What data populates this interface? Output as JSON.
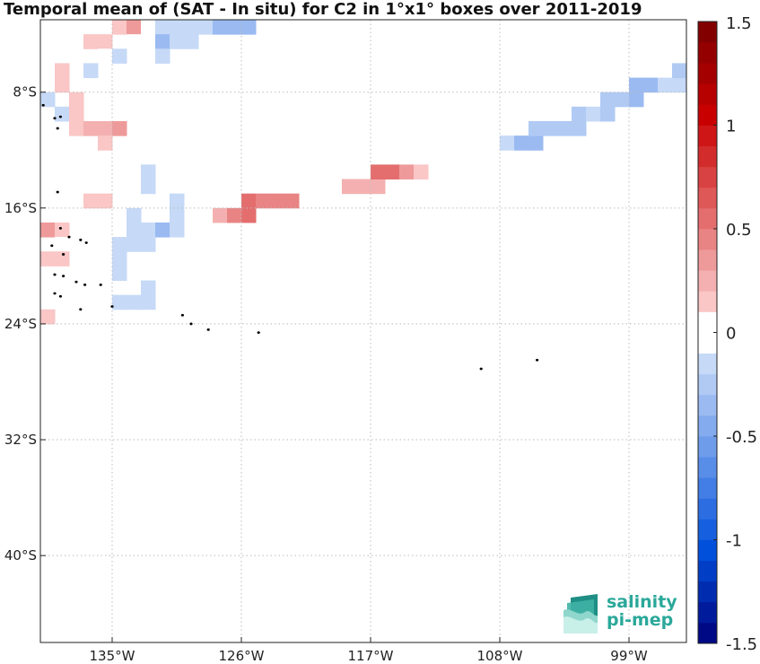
{
  "title": "Temporal mean of (SAT - In situ) for C2 in 1°x1° boxes over 2011-2019",
  "map": {
    "lon_range": [
      -140,
      -95
    ],
    "lat_range": [
      -46,
      -3
    ],
    "x_ticks": [
      {
        "value": -135,
        "label": "135°W"
      },
      {
        "value": -126,
        "label": "126°W"
      },
      {
        "value": -117,
        "label": "117°W"
      },
      {
        "value": -108,
        "label": "108°W"
      },
      {
        "value": -99,
        "label": "99°W"
      }
    ],
    "y_ticks": [
      {
        "value": -8,
        "label": "8°S"
      },
      {
        "value": -16,
        "label": "16°S"
      },
      {
        "value": -24,
        "label": "24°S"
      },
      {
        "value": -32,
        "label": "32°S"
      },
      {
        "value": -40,
        "label": "40°S"
      }
    ],
    "grid": "dotted",
    "cells": [
      {
        "lon": -135,
        "lat": -4,
        "v": 0.15
      },
      {
        "lon": -134,
        "lat": -4,
        "v": 0.3
      },
      {
        "lon": -133,
        "lat": -4,
        "v": -0.05
      },
      {
        "lon": -132,
        "lat": -4,
        "v": -0.15
      },
      {
        "lon": -131,
        "lat": -4,
        "v": -0.15
      },
      {
        "lon": -130,
        "lat": -4,
        "v": -0.1
      },
      {
        "lon": -129,
        "lat": -4,
        "v": -0.2
      },
      {
        "lon": -128,
        "lat": -4,
        "v": -0.35
      },
      {
        "lon": -127,
        "lat": -4,
        "v": -0.35
      },
      {
        "lon": -126,
        "lat": -4,
        "v": -0.3
      },
      {
        "lon": -137,
        "lat": -5,
        "v": 0.15
      },
      {
        "lon": -136,
        "lat": -5,
        "v": 0.15
      },
      {
        "lon": -134,
        "lat": -5,
        "v": 0.05
      },
      {
        "lon": -133,
        "lat": -5,
        "v": -0.05
      },
      {
        "lon": -132,
        "lat": -5,
        "v": -0.3
      },
      {
        "lon": -131,
        "lat": -5,
        "v": -0.2
      },
      {
        "lon": -130,
        "lat": -5,
        "v": -0.2
      },
      {
        "lon": -136,
        "lat": -6,
        "v": -0.05
      },
      {
        "lon": -135,
        "lat": -6,
        "v": -0.1
      },
      {
        "lon": -133,
        "lat": -6,
        "v": -0.05
      },
      {
        "lon": -132,
        "lat": -6,
        "v": -0.15
      },
      {
        "lon": -139,
        "lat": -7,
        "v": 0.15
      },
      {
        "lon": -137,
        "lat": -7,
        "v": -0.1
      },
      {
        "lon": -139,
        "lat": -8,
        "v": 0.15
      },
      {
        "lon": -140,
        "lat": -9,
        "v": -0.1
      },
      {
        "lon": -138,
        "lat": -9,
        "v": 0.1
      },
      {
        "lon": -139,
        "lat": -10,
        "v": -0.15
      },
      {
        "lon": -138,
        "lat": -10,
        "v": 0.1
      },
      {
        "lon": -136,
        "lat": -10,
        "v": 0.05
      },
      {
        "lon": -138,
        "lat": -11,
        "v": 0.1
      },
      {
        "lon": -137,
        "lat": -11,
        "v": 0.2
      },
      {
        "lon": -136,
        "lat": -11,
        "v": 0.25
      },
      {
        "lon": -135,
        "lat": -11,
        "v": 0.35
      },
      {
        "lon": -136,
        "lat": -12,
        "v": 0.15
      },
      {
        "lon": -133,
        "lat": -14,
        "v": -0.1
      },
      {
        "lon": -133,
        "lat": -15,
        "v": -0.1
      },
      {
        "lon": -137,
        "lat": -16,
        "v": 0.15
      },
      {
        "lon": -136,
        "lat": -16,
        "v": 0.15
      },
      {
        "lon": -131,
        "lat": -16,
        "v": -0.1
      },
      {
        "lon": -134,
        "lat": -17,
        "v": -0.2
      },
      {
        "lon": -131,
        "lat": -17,
        "v": -0.1
      },
      {
        "lon": -140,
        "lat": -18,
        "v": 0.3
      },
      {
        "lon": -139,
        "lat": -18,
        "v": 0.1
      },
      {
        "lon": -134,
        "lat": -18,
        "v": -0.1
      },
      {
        "lon": -133,
        "lat": -18,
        "v": -0.1
      },
      {
        "lon": -132,
        "lat": -18,
        "v": -0.3
      },
      {
        "lon": -131,
        "lat": -18,
        "v": -0.1
      },
      {
        "lon": -139,
        "lat": -19,
        "v": 0.05
      },
      {
        "lon": -135,
        "lat": -19,
        "v": -0.1
      },
      {
        "lon": -134,
        "lat": -19,
        "v": -0.1
      },
      {
        "lon": -133,
        "lat": -19,
        "v": -0.1
      },
      {
        "lon": -140,
        "lat": -20,
        "v": 0.15
      },
      {
        "lon": -139,
        "lat": -20,
        "v": 0.15
      },
      {
        "lon": -135,
        "lat": -20,
        "v": -0.1
      },
      {
        "lon": -135,
        "lat": -21,
        "v": -0.1
      },
      {
        "lon": -133,
        "lat": -22,
        "v": -0.15
      },
      {
        "lon": -135,
        "lat": -23,
        "v": -0.1
      },
      {
        "lon": -134,
        "lat": -23,
        "v": -0.1
      },
      {
        "lon": -133,
        "lat": -23,
        "v": -0.1
      },
      {
        "lon": -140,
        "lat": -24,
        "v": 0.15
      },
      {
        "lon": -128,
        "lat": -17,
        "v": 0.2
      },
      {
        "lon": -127,
        "lat": -17,
        "v": 0.45
      },
      {
        "lon": -126,
        "lat": -17,
        "v": 0.55
      },
      {
        "lon": -126,
        "lat": -16,
        "v": 0.55
      },
      {
        "lon": -125,
        "lat": -16,
        "v": 0.45
      },
      {
        "lon": -124,
        "lat": -16,
        "v": 0.45
      },
      {
        "lon": -123,
        "lat": -16,
        "v": 0.45
      },
      {
        "lon": -119,
        "lat": -15,
        "v": 0.25
      },
      {
        "lon": -118,
        "lat": -15,
        "v": 0.25
      },
      {
        "lon": -117,
        "lat": -15,
        "v": 0.25
      },
      {
        "lon": -117,
        "lat": -14,
        "v": 0.5
      },
      {
        "lon": -116,
        "lat": -14,
        "v": 0.5
      },
      {
        "lon": -115,
        "lat": -14,
        "v": 0.35
      },
      {
        "lon": -114,
        "lat": -14,
        "v": 0.15
      },
      {
        "lon": -108,
        "lat": -12,
        "v": -0.1
      },
      {
        "lon": -107,
        "lat": -12,
        "v": -0.4
      },
      {
        "lon": -106,
        "lat": -12,
        "v": -0.4
      },
      {
        "lon": -106,
        "lat": -11,
        "v": -0.25
      },
      {
        "lon": -105,
        "lat": -11,
        "v": -0.25
      },
      {
        "lon": -104,
        "lat": -11,
        "v": -0.25
      },
      {
        "lon": -103,
        "lat": -11,
        "v": -0.25
      },
      {
        "lon": -103,
        "lat": -10,
        "v": -0.25
      },
      {
        "lon": -102,
        "lat": -10,
        "v": -0.15
      },
      {
        "lon": -101,
        "lat": -10,
        "v": -0.25
      },
      {
        "lon": -101,
        "lat": -9,
        "v": -0.25
      },
      {
        "lon": -100,
        "lat": -9,
        "v": -0.25
      },
      {
        "lon": -99,
        "lat": -9,
        "v": -0.4
      },
      {
        "lon": -99,
        "lat": -8,
        "v": -0.4
      },
      {
        "lon": -98,
        "lat": -8,
        "v": -0.4
      },
      {
        "lon": -97,
        "lat": -8,
        "v": -0.15
      },
      {
        "lon": -96,
        "lat": -8,
        "v": -0.15
      },
      {
        "lon": -96,
        "lat": -7,
        "v": -0.25
      }
    ],
    "islands": [
      {
        "lon": -139.8,
        "lat": -8.9
      },
      {
        "lon": -139.0,
        "lat": -9.8
      },
      {
        "lon": -138.6,
        "lat": -9.7
      },
      {
        "lon": -138.8,
        "lat": -10.5
      },
      {
        "lon": -138.8,
        "lat": -14.9
      },
      {
        "lon": -138.6,
        "lat": -17.4
      },
      {
        "lon": -138.0,
        "lat": -18.0
      },
      {
        "lon": -137.2,
        "lat": -18.2
      },
      {
        "lon": -136.8,
        "lat": -18.4
      },
      {
        "lon": -139.2,
        "lat": -18.6
      },
      {
        "lon": -138.4,
        "lat": -19.2
      },
      {
        "lon": -139.0,
        "lat": -20.6
      },
      {
        "lon": -138.4,
        "lat": -20.7
      },
      {
        "lon": -137.5,
        "lat": -21.1
      },
      {
        "lon": -136.9,
        "lat": -21.3
      },
      {
        "lon": -135.8,
        "lat": -21.3
      },
      {
        "lon": -139.0,
        "lat": -21.9
      },
      {
        "lon": -138.6,
        "lat": -22.1
      },
      {
        "lon": -137.2,
        "lat": -23.0
      },
      {
        "lon": -135.0,
        "lat": -22.8
      },
      {
        "lon": -130.1,
        "lat": -23.4
      },
      {
        "lon": -128.3,
        "lat": -24.4
      },
      {
        "lon": -124.8,
        "lat": -24.6
      },
      {
        "lon": -129.5,
        "lat": -24.0
      },
      {
        "lon": -109.3,
        "lat": -27.1
      },
      {
        "lon": -105.4,
        "lat": -26.5
      }
    ]
  },
  "colorbar": {
    "vmin": -1.5,
    "vmax": 1.5,
    "ticks": [
      {
        "value": 1.5,
        "label": "1.5"
      },
      {
        "value": 1,
        "label": "1"
      },
      {
        "value": 0.5,
        "label": "0.5"
      },
      {
        "value": 0,
        "label": "0"
      },
      {
        "value": -0.5,
        "label": "-0.5"
      },
      {
        "value": -1,
        "label": "-1"
      },
      {
        "value": -1.5,
        "label": "-1.5"
      }
    ],
    "levels": 30,
    "neg_color": "#00007a",
    "mid_color": "#ffffff",
    "pos_color": "#7a0000"
  },
  "logo": {
    "line1": "salinity",
    "line2": "pi-mep",
    "color": "#2aa89a"
  }
}
